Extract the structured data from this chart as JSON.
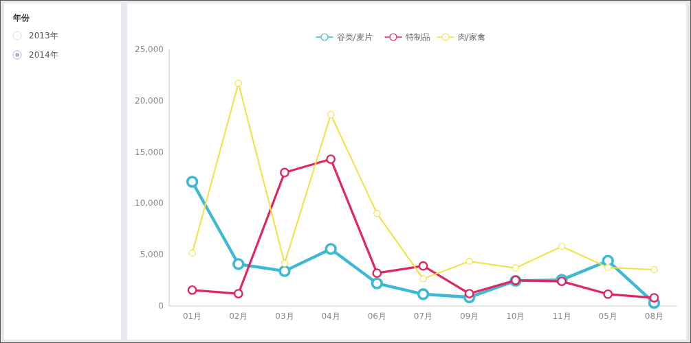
{
  "chart_data": [
    {
      "type": "other",
      "title": "年份",
      "annotations": [
        "2013年",
        "2014年"
      ]
    },
    {
      "type": "line",
      "categories": [
        "01月",
        "02月",
        "03月",
        "04月",
        "06月",
        "07月",
        "09月",
        "10月",
        "11月",
        "05月",
        "08月"
      ],
      "series": [
        {
          "name": "谷类/麦片",
          "color": "#3fb8d4",
          "values": [
            12100,
            4080,
            3400,
            5550,
            2200,
            1150,
            850,
            2450,
            2550,
            4400,
            300
          ]
        },
        {
          "name": "特制品",
          "color": "#e0265e",
          "values": [
            1550,
            1200,
            13000,
            14300,
            3200,
            3900,
            1200,
            2500,
            2400,
            1150,
            800
          ]
        },
        {
          "name": "肉/家禽",
          "color": "#f5e042",
          "values": [
            5150,
            21700,
            4150,
            18650,
            9000,
            2650,
            4350,
            3700,
            5800,
            3750,
            3550
          ]
        }
      ],
      "ylim": [
        0,
        25000
      ],
      "yticks": [
        {
          "value": 0,
          "label": "0"
        },
        {
          "value": 5000,
          "label": "5,000"
        },
        {
          "value": 10000,
          "label": "10,000"
        },
        {
          "value": 15000,
          "label": "15,000"
        },
        {
          "value": 20000,
          "label": "20,000"
        },
        {
          "value": 25000,
          "label": "25,000"
        }
      ],
      "grid": false,
      "legend": "top",
      "marker": "circle",
      "line_style": "solid"
    }
  ]
}
